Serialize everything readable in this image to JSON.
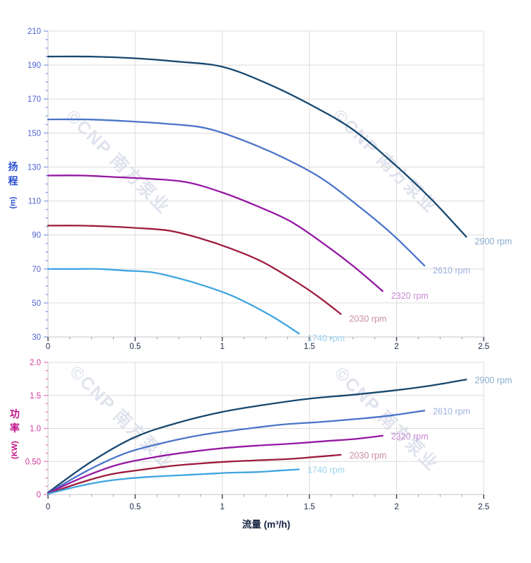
{
  "watermark": {
    "text": "©CNP 南方泵业"
  },
  "chart_data": [
    {
      "id": "head-curve-chart",
      "type": "line",
      "title": "",
      "grid": true,
      "legend_position": "end-of-curve",
      "x_axis": {
        "min": 0,
        "max": 2.5,
        "major_step": 0.5,
        "minor_step": 0.125,
        "tick_values": [
          0,
          0.5,
          1,
          1.5,
          2,
          2.5
        ],
        "tick_labels": [
          "0",
          "0.5",
          "1",
          "1.5",
          "2",
          "2.5"
        ],
        "tick_label_color": "#1d2a4a",
        "major_tick_color": "#3f3f46",
        "minor_tick_color": "#9aa0a6"
      },
      "y_axis": {
        "title": "扬程",
        "unit": "(m)",
        "title_color": "#2b50d0",
        "min": 30,
        "max": 210,
        "major_step": 20,
        "minor_step": 5,
        "tick_values": [
          30,
          50,
          70,
          90,
          110,
          130,
          150,
          170,
          190,
          210
        ],
        "tick_labels": [
          "30",
          "50",
          "70",
          "90",
          "110",
          "130",
          "150",
          "170",
          "190",
          "210"
        ],
        "tick_label_color": "#5064d2",
        "tick_mark_color": "#8ea6e8"
      },
      "series": [
        {
          "name": "2900 rpm",
          "color": "#17486f",
          "label_color": "#88accd",
          "points": [
            [
              0,
              195
            ],
            [
              0.25,
              195
            ],
            [
              0.5,
              194
            ],
            [
              0.75,
              192
            ],
            [
              1,
              189
            ],
            [
              1.25,
              179.5
            ],
            [
              1.5,
              167
            ],
            [
              1.75,
              152
            ],
            [
              2,
              130.5
            ],
            [
              2.2,
              111
            ],
            [
              2.4,
              89
            ]
          ]
        },
        {
          "name": "2610 rpm",
          "color": "#4b74c9",
          "label_color": "#9db1e2",
          "points": [
            [
              0,
              158
            ],
            [
              0.225,
              158
            ],
            [
              0.45,
              157
            ],
            [
              0.675,
              155.5
            ],
            [
              0.9,
              153
            ],
            [
              1.125,
              145.5
            ],
            [
              1.35,
              135.5
            ],
            [
              1.575,
              123
            ],
            [
              1.8,
              105.5
            ],
            [
              1.98,
              90
            ],
            [
              2.16,
              72
            ]
          ]
        },
        {
          "name": "2320 rpm",
          "color": "#9518a2",
          "label_color": "#c98bd5",
          "points": [
            [
              0,
              125
            ],
            [
              0.2,
              125
            ],
            [
              0.4,
              124
            ],
            [
              0.6,
              123
            ],
            [
              0.8,
              121
            ],
            [
              1,
              115
            ],
            [
              1.2,
              107
            ],
            [
              1.4,
              97.5
            ],
            [
              1.6,
              83.5
            ],
            [
              1.76,
              71
            ],
            [
              1.92,
              57
            ]
          ]
        },
        {
          "name": "2030 rpm",
          "color": "#9e1c3e",
          "label_color": "#c98da6",
          "points": [
            [
              0,
              95.5
            ],
            [
              0.175,
              95.5
            ],
            [
              0.35,
              95
            ],
            [
              0.525,
              94
            ],
            [
              0.7,
              92.5
            ],
            [
              0.875,
              88
            ],
            [
              1.05,
              82
            ],
            [
              1.225,
              74.5
            ],
            [
              1.4,
              64
            ],
            [
              1.54,
              54.5
            ],
            [
              1.68,
              43.5
            ]
          ]
        },
        {
          "name": "1740 rpm",
          "color": "#3fa5e0",
          "label_color": "#9bd2f0",
          "points": [
            [
              0,
              70
            ],
            [
              0.15,
              70
            ],
            [
              0.3,
              70
            ],
            [
              0.45,
              69
            ],
            [
              0.6,
              68
            ],
            [
              0.75,
              64.5
            ],
            [
              0.9,
              60
            ],
            [
              1.05,
              54.5
            ],
            [
              1.2,
              47
            ],
            [
              1.32,
              40
            ],
            [
              1.44,
              32
            ]
          ]
        }
      ]
    },
    {
      "id": "power-curve-chart",
      "type": "line",
      "title": "",
      "grid": true,
      "legend_position": "end-of-curve",
      "x_axis": {
        "title": "流量 (m³/h)",
        "min": 0,
        "max": 2.5,
        "major_step": 0.5,
        "minor_step": 0.125,
        "tick_values": [
          0,
          0.5,
          1,
          1.5,
          2,
          2.5
        ],
        "tick_labels": [
          "0",
          "0.5",
          "1",
          "1.5",
          "2",
          "2.5"
        ],
        "tick_label_color": "#1d2a4a",
        "major_tick_color": "#3f3f46",
        "minor_tick_color": "#9aa0a6"
      },
      "y_axis": {
        "title": "功率",
        "unit": "(KW)",
        "title_color": "#bf1287",
        "min": 0,
        "max": 2,
        "major_step": 0.5,
        "minor_step": 0.125,
        "tick_values": [
          0,
          0.5,
          1,
          1.5,
          2
        ],
        "tick_labels": [
          "0",
          "0.50",
          "1.0",
          "1.5",
          "2.0"
        ],
        "tick_label_color": "#d23a9e",
        "tick_mark_color": "#f285c5"
      },
      "series": [
        {
          "name": "2900 rpm",
          "color": "#17486f",
          "label_color": "#88accd",
          "points": [
            [
              0,
              0.03
            ],
            [
              0.25,
              0.5
            ],
            [
              0.5,
              0.87
            ],
            [
              0.75,
              1.09
            ],
            [
              1,
              1.25
            ],
            [
              1.25,
              1.36
            ],
            [
              1.5,
              1.45
            ],
            [
              1.75,
              1.51
            ],
            [
              2,
              1.58
            ],
            [
              2.2,
              1.65
            ],
            [
              2.4,
              1.74
            ]
          ]
        },
        {
          "name": "2610 rpm",
          "color": "#4b74c9",
          "label_color": "#9db1e2",
          "points": [
            [
              0,
              0.02
            ],
            [
              0.225,
              0.36
            ],
            [
              0.45,
              0.63
            ],
            [
              0.675,
              0.79
            ],
            [
              0.9,
              0.91
            ],
            [
              1.125,
              0.99
            ],
            [
              1.35,
              1.06
            ],
            [
              1.575,
              1.1
            ],
            [
              1.8,
              1.15
            ],
            [
              1.98,
              1.2
            ],
            [
              2.16,
              1.27
            ]
          ]
        },
        {
          "name": "2320 rpm",
          "color": "#9518a2",
          "label_color": "#c98bd5",
          "points": [
            [
              0,
              0.02
            ],
            [
              0.2,
              0.26
            ],
            [
              0.4,
              0.45
            ],
            [
              0.6,
              0.56
            ],
            [
              0.8,
              0.64
            ],
            [
              1,
              0.7
            ],
            [
              1.2,
              0.74
            ],
            [
              1.4,
              0.77
            ],
            [
              1.6,
              0.81
            ],
            [
              1.76,
              0.84
            ],
            [
              1.92,
              0.89
            ]
          ]
        },
        {
          "name": "2030 rpm",
          "color": "#9e1c3e",
          "label_color": "#c98da6",
          "points": [
            [
              0,
              0.01
            ],
            [
              0.175,
              0.17
            ],
            [
              0.35,
              0.3
            ],
            [
              0.525,
              0.37
            ],
            [
              0.7,
              0.43
            ],
            [
              0.875,
              0.47
            ],
            [
              1.05,
              0.5
            ],
            [
              1.225,
              0.52
            ],
            [
              1.4,
              0.54
            ],
            [
              1.54,
              0.57
            ],
            [
              1.68,
              0.6
            ]
          ]
        },
        {
          "name": "1740 rpm",
          "color": "#3fa5e0",
          "label_color": "#9bd2f0",
          "points": [
            [
              0,
              0.01
            ],
            [
              0.15,
              0.11
            ],
            [
              0.3,
              0.19
            ],
            [
              0.45,
              0.24
            ],
            [
              0.6,
              0.27
            ],
            [
              0.75,
              0.29
            ],
            [
              0.9,
              0.31
            ],
            [
              1.05,
              0.33
            ],
            [
              1.2,
              0.34
            ],
            [
              1.32,
              0.36
            ],
            [
              1.44,
              0.38
            ]
          ]
        }
      ]
    }
  ]
}
